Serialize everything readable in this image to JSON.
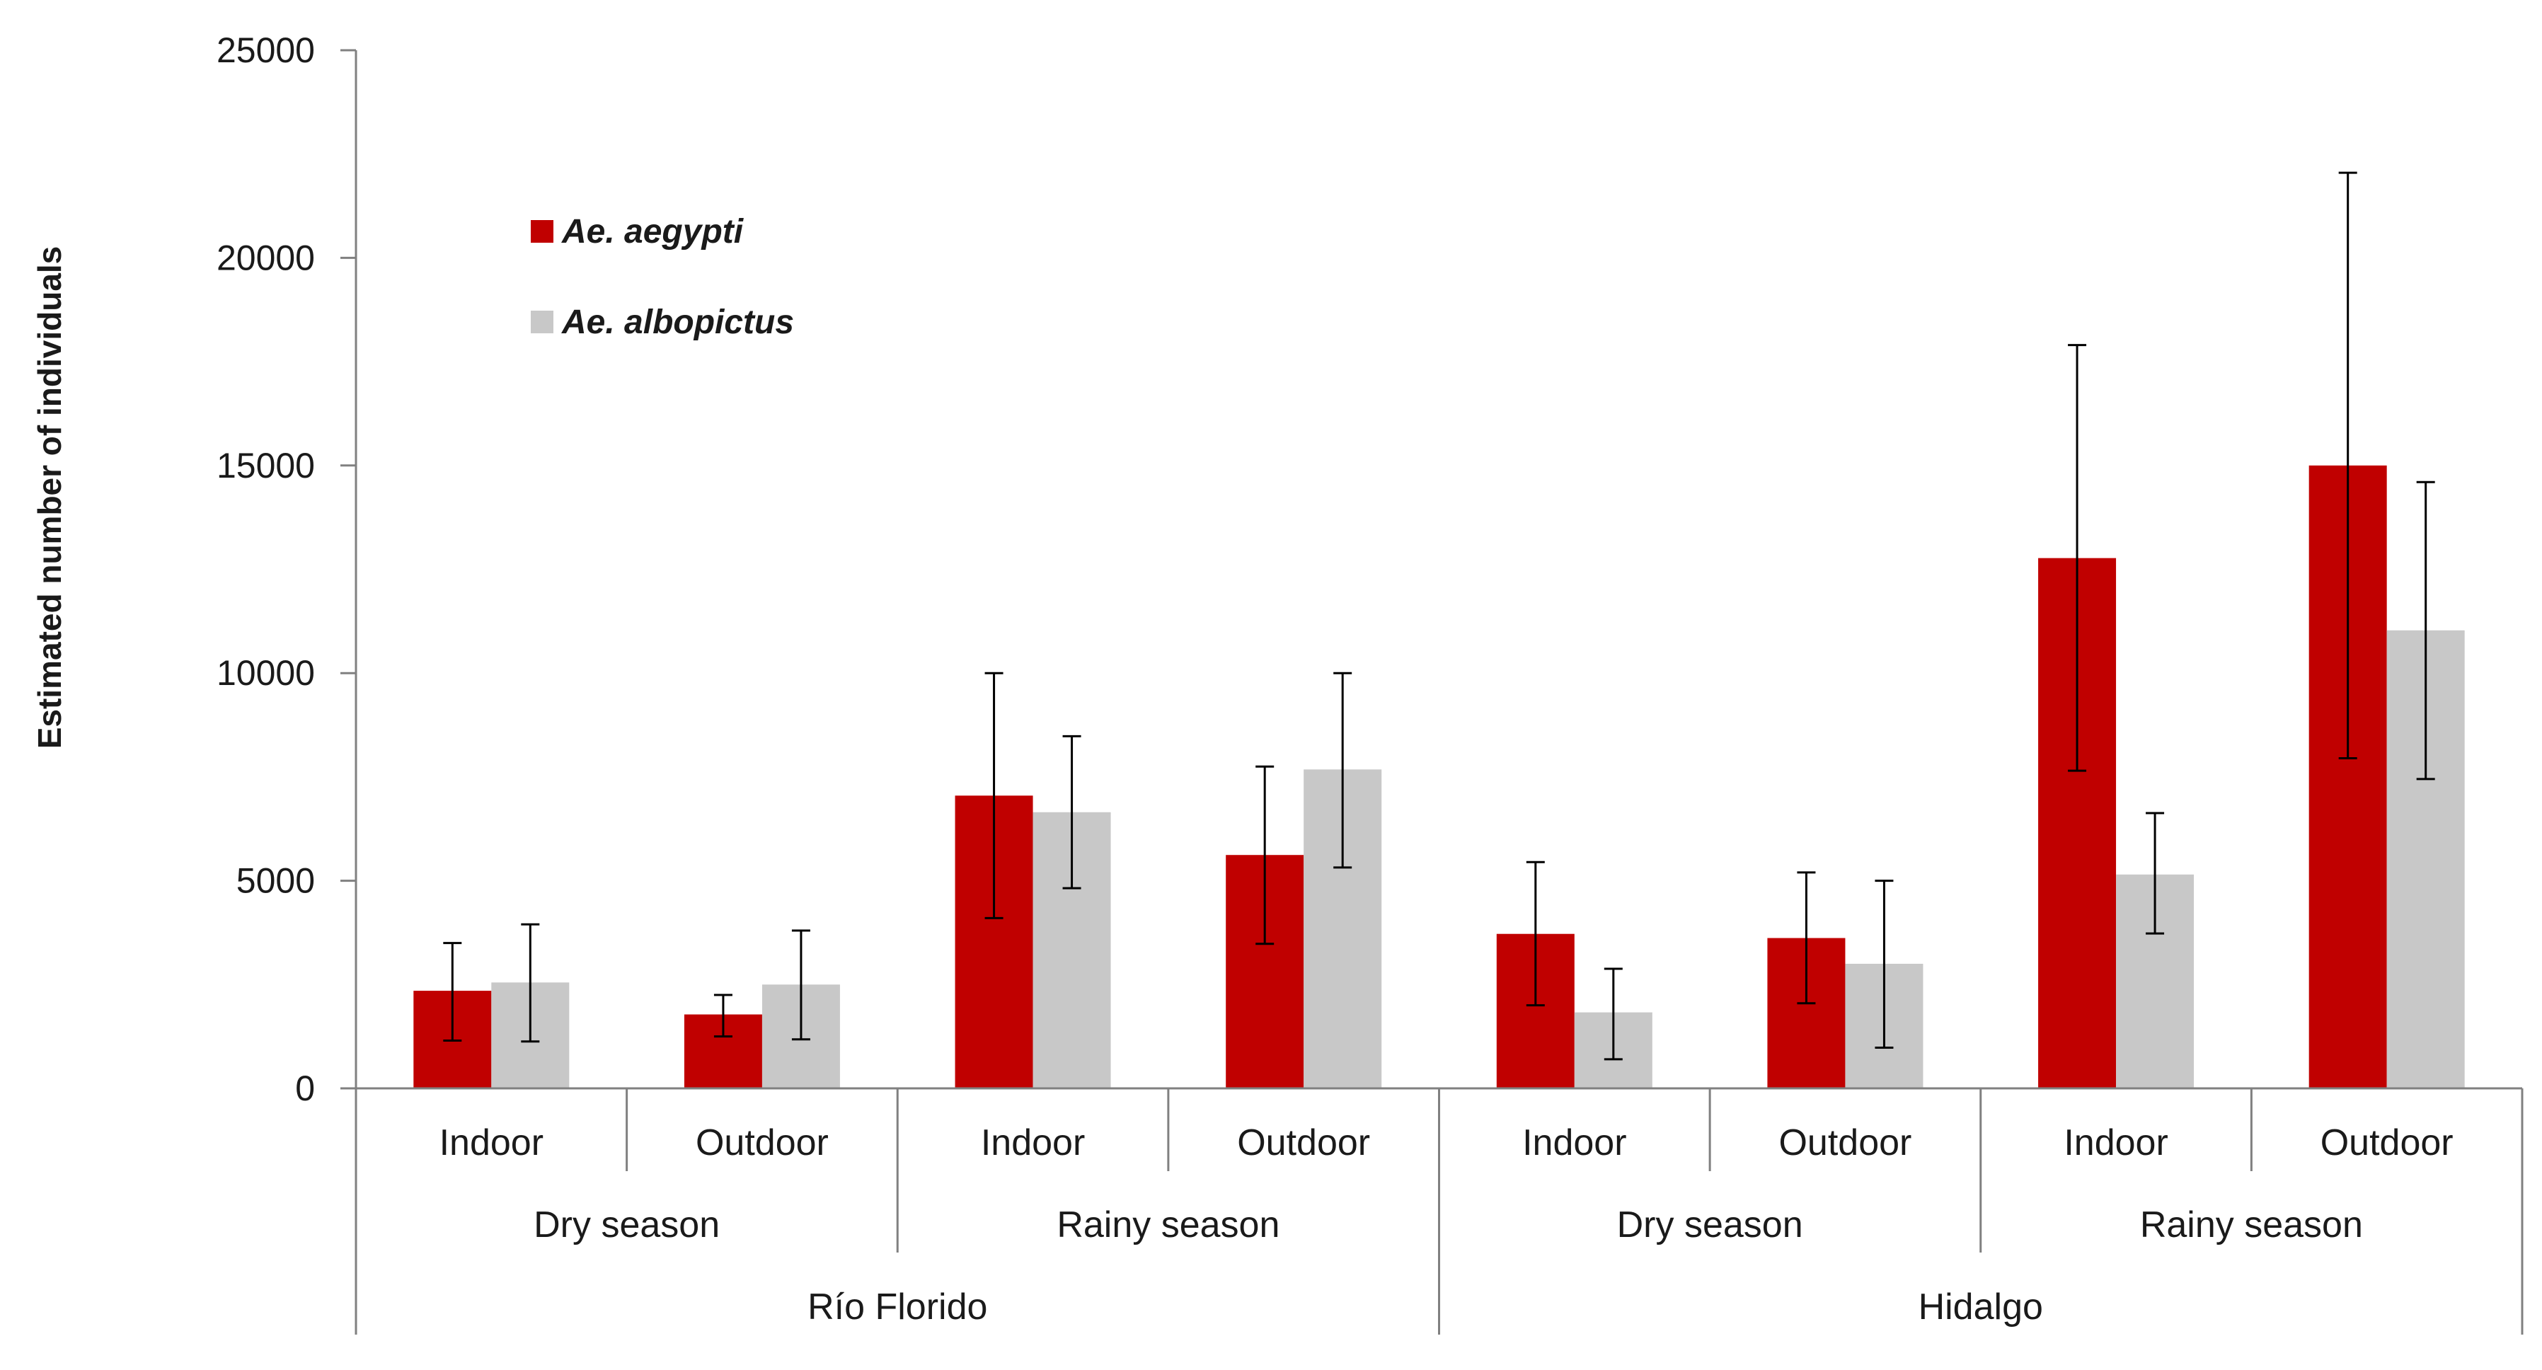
{
  "chart_data": {
    "type": "bar",
    "title": "",
    "xlabel": "",
    "ylabel": "Estimated number of  individuals",
    "ylim": [
      0,
      25000
    ],
    "yticks": [
      0,
      5000,
      10000,
      15000,
      20000,
      25000
    ],
    "grid": false,
    "legend_position": "top-left",
    "categories": [
      "Indoor",
      "Outdoor",
      "Indoor",
      "Outdoor",
      "Indoor",
      "Outdoor",
      "Indoor",
      "Outdoor"
    ],
    "season_groups": [
      {
        "label": "Dry season",
        "span": [
          0,
          1
        ]
      },
      {
        "label": "Rainy season",
        "span": [
          2,
          3
        ]
      },
      {
        "label": "Dry season",
        "span": [
          4,
          5
        ]
      },
      {
        "label": "Rainy season",
        "span": [
          6,
          7
        ]
      }
    ],
    "site_groups": [
      {
        "label": "Río Florido",
        "span": [
          0,
          3
        ]
      },
      {
        "label": "Hidalgo",
        "span": [
          4,
          7
        ]
      }
    ],
    "series": [
      {
        "name": "Ae. aegypti",
        "color": "#c00000",
        "values": [
          2350,
          1780,
          7050,
          5620,
          3720,
          3620,
          12770,
          15000
        ],
        "error_low": [
          1150,
          1250,
          4100,
          3480,
          2000,
          2050,
          7650,
          7950
        ],
        "error_high": [
          3500,
          2250,
          10000,
          7750,
          5450,
          5200,
          17900,
          22050
        ]
      },
      {
        "name": "Ae. albopictus",
        "color": "#c8c8c8",
        "values": [
          2550,
          2500,
          6650,
          7680,
          1830,
          3000,
          5150,
          11030
        ],
        "error_low": [
          1130,
          1180,
          4820,
          5320,
          700,
          980,
          3730,
          7450
        ],
        "error_high": [
          3950,
          3800,
          8480,
          10000,
          2880,
          5000,
          6630,
          14600
        ]
      }
    ]
  }
}
